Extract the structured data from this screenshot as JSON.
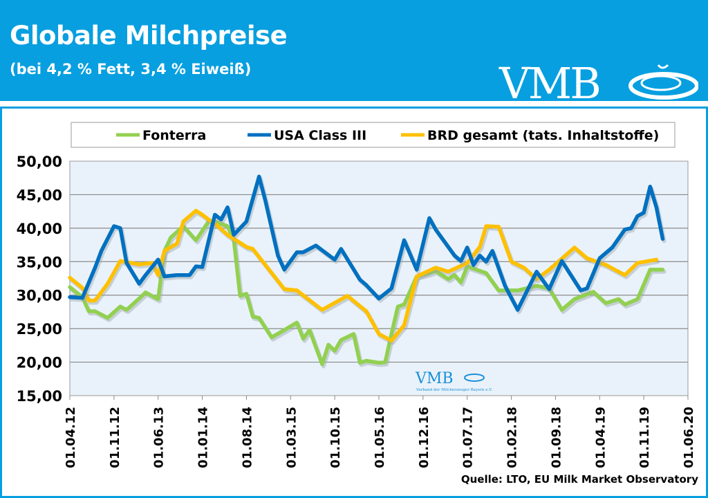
{
  "header": {
    "title": "Globale Milchpreise",
    "subtitle": "(bei 4,2 % Fett, 3,4 % Eiweiß)",
    "logo_text": "VMB",
    "watermark_text": "VMB",
    "watermark_subtext": "Verband der Milcherzeuger Bayern e.V."
  },
  "source": "Quelle:  LTO, EU Milk Market Observatory",
  "colors": {
    "header": "#079fe0",
    "fonterra": "#92d050",
    "usa": "#0070c0",
    "brd": "#ffc000",
    "plot_bg": "#e9f2fa"
  },
  "chart_data": {
    "type": "line",
    "title": "",
    "xlabel": "",
    "ylabel": "",
    "ylim": [
      15,
      50
    ],
    "xlim": [
      "2012-04",
      "2020-06"
    ],
    "grid": true,
    "legend_position": "top",
    "y_ticks": [
      "50,00",
      "45,00",
      "40,00",
      "35,00",
      "30,00",
      "25,00",
      "20,00",
      "15,00"
    ],
    "y_tick_values": [
      50,
      45,
      40,
      35,
      30,
      25,
      20,
      15
    ],
    "x_ticks": [
      "01.04.12",
      "01.11.12",
      "01.06.13",
      "01.01.14",
      "01.08.14",
      "01.03.15",
      "01.10.15",
      "01.05.16",
      "01.12.16",
      "01.07.17",
      "01.02.18",
      "01.09.18",
      "01.04.19",
      "01.11.19",
      "01.06.20"
    ],
    "x_tick_dates": [
      "2012-04",
      "2012-11",
      "2013-06",
      "2014-01",
      "2014-08",
      "2015-03",
      "2015-10",
      "2016-05",
      "2016-12",
      "2017-07",
      "2018-02",
      "2018-09",
      "2019-04",
      "2019-11",
      "2020-06"
    ],
    "series": [
      {
        "name": "Fonterra",
        "color": "#92d050",
        "points": [
          [
            "2012-04",
            31.2
          ],
          [
            "2012-06",
            29.7
          ],
          [
            "2012-07",
            27.6
          ],
          [
            "2012-08",
            27.6
          ],
          [
            "2012-10",
            26.6
          ],
          [
            "2012-12",
            28.3
          ],
          [
            "2013-01",
            27.8
          ],
          [
            "2013-03",
            29.5
          ],
          [
            "2013-04",
            30.4
          ],
          [
            "2013-06",
            29.4
          ],
          [
            "2013-07",
            36.6
          ],
          [
            "2013-08",
            38.6
          ],
          [
            "2013-10",
            40.3
          ],
          [
            "2013-12",
            38.2
          ],
          [
            "2014-02",
            41.0
          ],
          [
            "2014-03",
            41.0
          ],
          [
            "2014-05",
            40.3
          ],
          [
            "2014-06",
            38.2
          ],
          [
            "2014-07",
            29.9
          ],
          [
            "2014-08",
            30.2
          ],
          [
            "2014-09",
            26.8
          ],
          [
            "2014-10",
            26.6
          ],
          [
            "2014-12",
            23.7
          ],
          [
            "2015-02",
            24.8
          ],
          [
            "2015-04",
            25.9
          ],
          [
            "2015-05",
            23.5
          ],
          [
            "2015-06",
            24.8
          ],
          [
            "2015-08",
            19.7
          ],
          [
            "2015-09",
            22.6
          ],
          [
            "2015-10",
            21.7
          ],
          [
            "2015-11",
            23.3
          ],
          [
            "2016-01",
            24.2
          ],
          [
            "2016-02",
            19.9
          ],
          [
            "2016-03",
            20.2
          ],
          [
            "2016-05",
            19.9
          ],
          [
            "2016-06",
            20.0
          ],
          [
            "2016-07",
            24.2
          ],
          [
            "2016-08",
            28.3
          ],
          [
            "2016-09",
            28.6
          ],
          [
            "2016-11",
            32.8
          ],
          [
            "2017-01",
            33.3
          ],
          [
            "2017-02",
            33.6
          ],
          [
            "2017-04",
            32.4
          ],
          [
            "2017-05",
            33.0
          ],
          [
            "2017-06",
            31.9
          ],
          [
            "2017-07",
            34.3
          ],
          [
            "2017-10",
            33.3
          ],
          [
            "2017-12",
            30.7
          ],
          [
            "2018-03",
            30.7
          ],
          [
            "2018-06",
            31.4
          ],
          [
            "2018-08",
            31.0
          ],
          [
            "2018-10",
            27.8
          ],
          [
            "2018-12",
            29.4
          ],
          [
            "2019-03",
            30.5
          ],
          [
            "2019-05",
            28.8
          ],
          [
            "2019-07",
            29.4
          ],
          [
            "2019-08",
            28.6
          ],
          [
            "2019-10",
            29.4
          ],
          [
            "2019-12",
            33.8
          ],
          [
            "2020-02",
            33.8
          ]
        ]
      },
      {
        "name": "USA Class III",
        "color": "#0070c0",
        "points": [
          [
            "2012-04",
            29.7
          ],
          [
            "2012-06",
            29.6
          ],
          [
            "2012-08",
            34.1
          ],
          [
            "2012-09",
            36.6
          ],
          [
            "2012-11",
            40.3
          ],
          [
            "2012-12",
            40.0
          ],
          [
            "2013-01",
            34.8
          ],
          [
            "2013-03",
            31.7
          ],
          [
            "2013-04",
            33.0
          ],
          [
            "2013-06",
            35.3
          ],
          [
            "2013-07",
            32.8
          ],
          [
            "2013-09",
            33.0
          ],
          [
            "2013-11",
            33.0
          ],
          [
            "2013-12",
            34.3
          ],
          [
            "2014-01",
            34.2
          ],
          [
            "2014-03",
            42.0
          ],
          [
            "2014-04",
            41.3
          ],
          [
            "2014-05",
            43.1
          ],
          [
            "2014-06",
            39.0
          ],
          [
            "2014-08",
            41.0
          ],
          [
            "2014-10",
            47.7
          ],
          [
            "2014-11",
            44.1
          ],
          [
            "2015-01",
            35.9
          ],
          [
            "2015-02",
            33.8
          ],
          [
            "2015-04",
            36.4
          ],
          [
            "2015-05",
            36.4
          ],
          [
            "2015-07",
            37.4
          ],
          [
            "2015-10",
            35.3
          ],
          [
            "2015-11",
            36.9
          ],
          [
            "2016-02",
            32.3
          ],
          [
            "2016-03",
            31.5
          ],
          [
            "2016-05",
            29.5
          ],
          [
            "2016-07",
            31.0
          ],
          [
            "2016-09",
            38.2
          ],
          [
            "2016-11",
            33.8
          ],
          [
            "2017-01",
            41.5
          ],
          [
            "2017-02",
            39.8
          ],
          [
            "2017-05",
            35.9
          ],
          [
            "2017-06",
            35.1
          ],
          [
            "2017-07",
            37.1
          ],
          [
            "2017-08",
            34.5
          ],
          [
            "2017-09",
            35.9
          ],
          [
            "2017-10",
            35.0
          ],
          [
            "2017-11",
            36.6
          ],
          [
            "2018-01",
            31.4
          ],
          [
            "2018-03",
            27.8
          ],
          [
            "2018-04",
            29.7
          ],
          [
            "2018-06",
            33.5
          ],
          [
            "2018-08",
            30.9
          ],
          [
            "2018-10",
            35.1
          ],
          [
            "2019-01",
            30.7
          ],
          [
            "2019-02",
            31.0
          ],
          [
            "2019-04",
            35.5
          ],
          [
            "2019-06",
            37.1
          ],
          [
            "2019-08",
            39.8
          ],
          [
            "2019-09",
            40.0
          ],
          [
            "2019-10",
            41.8
          ],
          [
            "2019-11",
            42.3
          ],
          [
            "2019-12",
            46.2
          ],
          [
            "2020-01",
            43.1
          ],
          [
            "2020-02",
            38.4
          ]
        ]
      },
      {
        "name": "BRD gesamt (tats. Inhaltstoffe)",
        "color": "#ffc000",
        "points": [
          [
            "2012-04",
            32.6
          ],
          [
            "2012-06",
            31.1
          ],
          [
            "2012-07",
            29.2
          ],
          [
            "2012-08",
            29.2
          ],
          [
            "2012-10",
            31.7
          ],
          [
            "2012-12",
            35.1
          ],
          [
            "2013-03",
            34.6
          ],
          [
            "2013-05",
            34.8
          ],
          [
            "2013-06",
            33.0
          ],
          [
            "2013-07",
            36.6
          ],
          [
            "2013-09",
            37.7
          ],
          [
            "2013-10",
            41.0
          ],
          [
            "2013-12",
            42.6
          ],
          [
            "2014-01",
            42.0
          ],
          [
            "2014-02",
            41.3
          ],
          [
            "2014-03",
            40.7
          ],
          [
            "2014-05",
            39.0
          ],
          [
            "2014-08",
            37.2
          ],
          [
            "2014-09",
            36.9
          ],
          [
            "2014-11",
            34.5
          ],
          [
            "2015-02",
            30.9
          ],
          [
            "2015-04",
            30.7
          ],
          [
            "2015-08",
            27.8
          ],
          [
            "2015-12",
            29.9
          ],
          [
            "2016-03",
            27.6
          ],
          [
            "2016-05",
            24.2
          ],
          [
            "2016-07",
            23.2
          ],
          [
            "2016-09",
            25.5
          ],
          [
            "2016-11",
            32.8
          ],
          [
            "2017-02",
            34.1
          ],
          [
            "2017-04",
            33.5
          ],
          [
            "2017-07",
            34.8
          ],
          [
            "2017-09",
            37.2
          ],
          [
            "2017-10",
            40.3
          ],
          [
            "2017-12",
            40.2
          ],
          [
            "2018-02",
            35.0
          ],
          [
            "2018-04",
            34.1
          ],
          [
            "2018-06",
            32.4
          ],
          [
            "2018-08",
            33.8
          ],
          [
            "2018-12",
            37.1
          ],
          [
            "2019-02",
            35.5
          ],
          [
            "2019-05",
            34.5
          ],
          [
            "2019-08",
            33.0
          ],
          [
            "2019-10",
            34.8
          ],
          [
            "2020-01",
            35.3
          ]
        ]
      }
    ]
  }
}
